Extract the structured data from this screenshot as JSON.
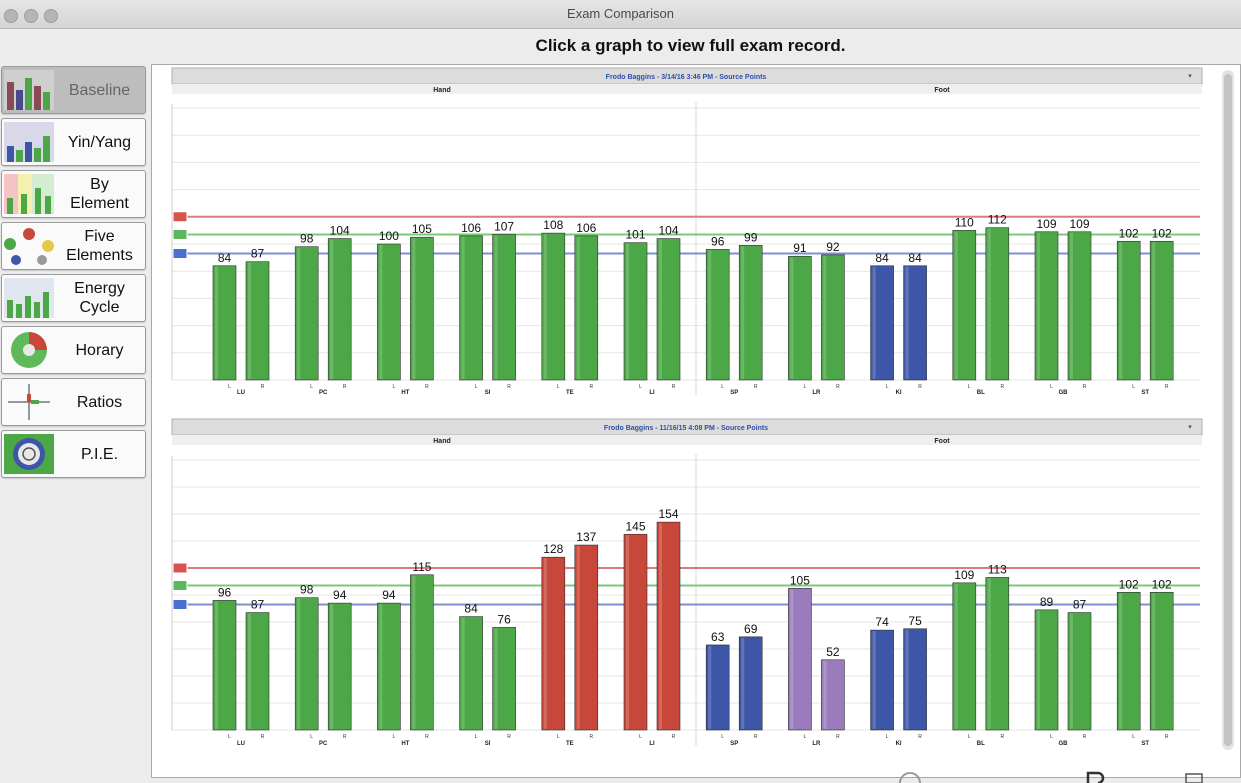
{
  "window": {
    "title": "Exam Comparison"
  },
  "instruction": "Click a graph to view full exam record.",
  "sidebar": {
    "items": [
      {
        "label": "Baseline",
        "active": true,
        "icon": "baseline-icon"
      },
      {
        "label": "Yin/Yang",
        "active": false,
        "icon": "yin-yang-icon"
      },
      {
        "label": "By\nElement",
        "active": false,
        "icon": "by-element-icon"
      },
      {
        "label": "Five\nElements",
        "active": false,
        "icon": "five-elements-icon"
      },
      {
        "label": "Energy\nCycle",
        "active": false,
        "icon": "energy-cycle-icon"
      },
      {
        "label": "Horary",
        "active": false,
        "icon": "horary-icon"
      },
      {
        "label": "Ratios",
        "active": false,
        "icon": "ratios-icon"
      },
      {
        "label": "P.I.E.",
        "active": false,
        "icon": "pie-icon"
      }
    ]
  },
  "colors": {
    "green": "#4ca846",
    "red": "#c8473b",
    "blue": "#3d56a8",
    "purple": "#9a7cbc",
    "header_text": "#2f4fa8",
    "high_line": "#e07a7a",
    "mid_line": "#7cc77c",
    "low_line": "#7f8fd0"
  },
  "chart_data": [
    {
      "type": "bar",
      "title": "Frodo Baggins - 3/14/16 3:46 PM - Source Points",
      "sections": [
        "Hand",
        "Foot"
      ],
      "categories": [
        "LU",
        "PC",
        "HT",
        "SI",
        "TE",
        "LI",
        "SP",
        "LR",
        "KI",
        "BL",
        "GB",
        "ST"
      ],
      "side_labels": [
        "L",
        "R"
      ],
      "ylim": [
        0,
        200
      ],
      "reference_lines": {
        "high": 120,
        "mid": 107,
        "low": 93
      },
      "series": [
        {
          "values": [
            84,
            98,
            100,
            106,
            108,
            101,
            96,
            91,
            84,
            110,
            109,
            102
          ],
          "colors": [
            "green",
            "green",
            "green",
            "green",
            "green",
            "green",
            "green",
            "green",
            "blue",
            "green",
            "green",
            "green"
          ]
        },
        {
          "values": [
            87,
            104,
            105,
            107,
            106,
            104,
            99,
            92,
            84,
            112,
            109,
            102
          ],
          "colors": [
            "green",
            "green",
            "green",
            "green",
            "green",
            "green",
            "green",
            "green",
            "blue",
            "green",
            "green",
            "green"
          ]
        }
      ]
    },
    {
      "type": "bar",
      "title": "Frodo Baggins - 11/16/15 4:08 PM - Source Points",
      "sections": [
        "Hand",
        "Foot"
      ],
      "categories": [
        "LU",
        "PC",
        "HT",
        "SI",
        "TE",
        "LI",
        "SP",
        "LR",
        "KI",
        "BL",
        "GB",
        "ST"
      ],
      "side_labels": [
        "L",
        "R"
      ],
      "ylim": [
        0,
        200
      ],
      "reference_lines": {
        "high": 120,
        "mid": 107,
        "low": 93
      },
      "series": [
        {
          "values": [
            96,
            98,
            94,
            84,
            128,
            145,
            63,
            105,
            74,
            109,
            89,
            102
          ],
          "colors": [
            "green",
            "green",
            "green",
            "green",
            "red",
            "red",
            "blue",
            "purple",
            "blue",
            "green",
            "green",
            "green"
          ]
        },
        {
          "values": [
            87,
            94,
            115,
            76,
            137,
            154,
            69,
            52,
            75,
            113,
            87,
            102
          ],
          "colors": [
            "green",
            "green",
            "green",
            "green",
            "red",
            "red",
            "blue",
            "purple",
            "blue",
            "green",
            "green",
            "green"
          ]
        }
      ]
    }
  ]
}
